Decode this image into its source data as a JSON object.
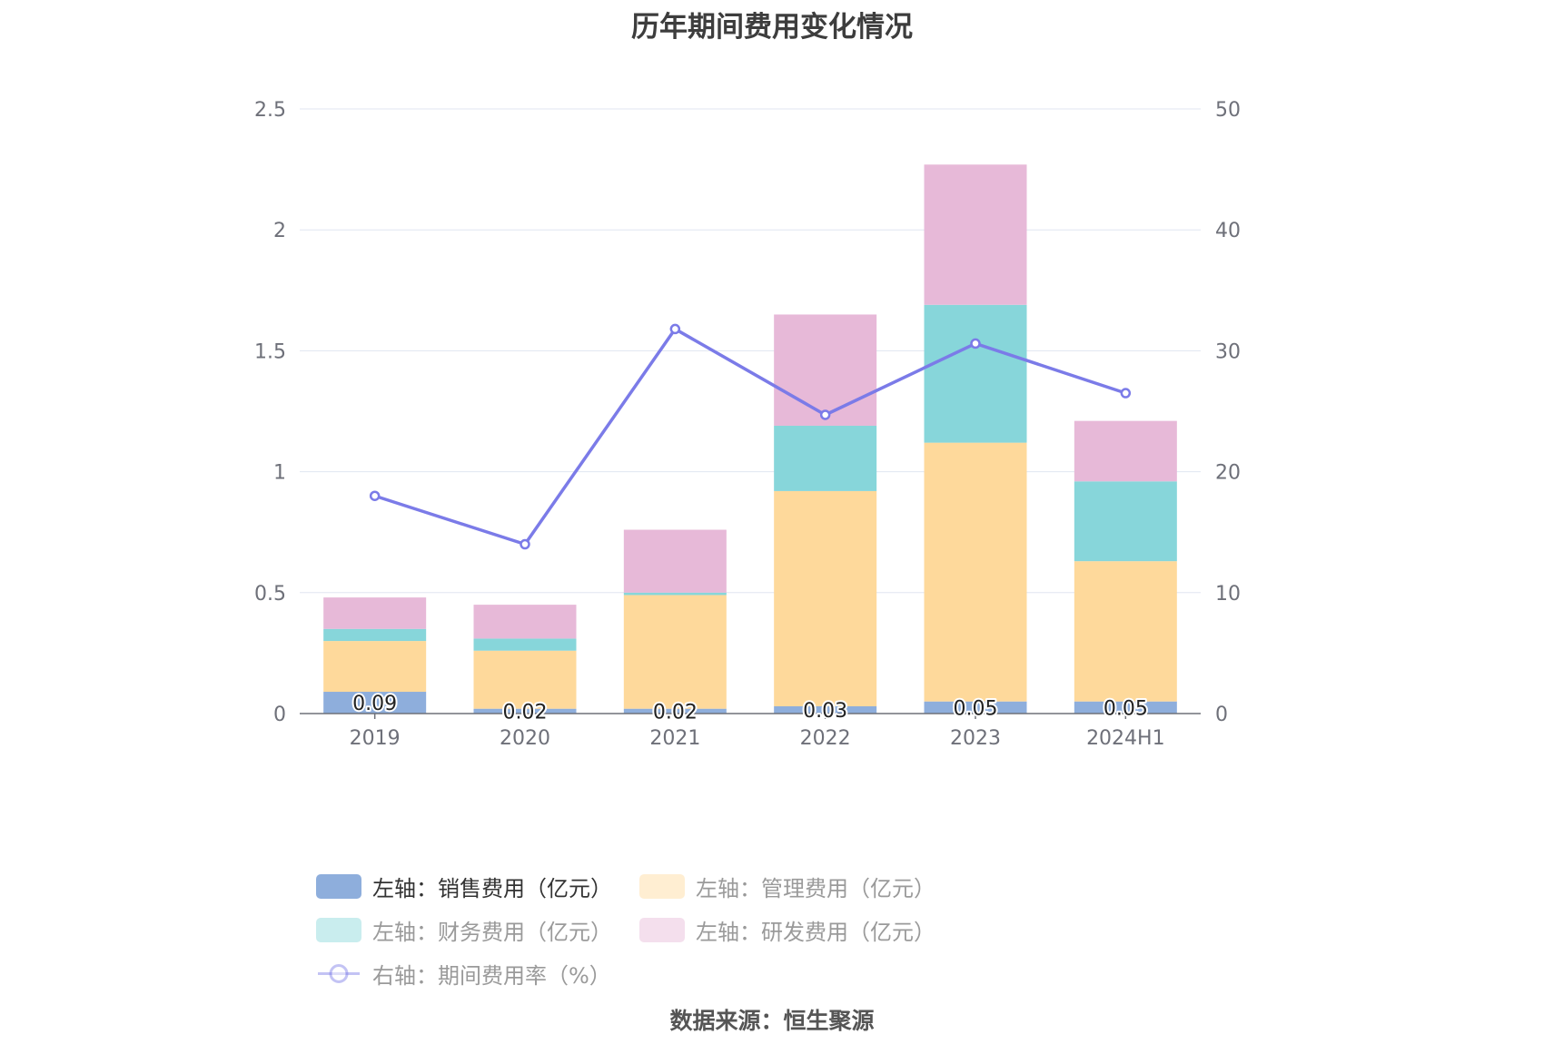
{
  "chart_data": {
    "type": "bar",
    "title": "历年期间费用变化情况",
    "source": "数据来源：恒生聚源",
    "categories": [
      "2019",
      "2020",
      "2021",
      "2022",
      "2023",
      "2024H1"
    ],
    "y_left": {
      "min": 0,
      "max": 2.5,
      "ticks": [
        "0",
        "0.5",
        "1",
        "1.5",
        "2",
        "2.5"
      ]
    },
    "y_right": {
      "min": 0,
      "max": 50,
      "ticks": [
        "0",
        "10",
        "20",
        "30",
        "40",
        "50"
      ]
    },
    "grid": true,
    "legend_position": "bottom",
    "series": [
      {
        "name": "左轴：销售费用（亿元）",
        "type": "bar",
        "axis": "left",
        "color": "#8eaedc",
        "values": [
          0.09,
          0.02,
          0.02,
          0.03,
          0.05,
          0.05
        ],
        "labels": [
          "0.09",
          "0.02",
          "0.02",
          "0.03",
          "0.05",
          "0.05"
        ],
        "legend_dim": false
      },
      {
        "name": "左轴：管理费用（亿元）",
        "type": "bar",
        "axis": "left",
        "color": "#fed99b",
        "values": [
          0.21,
          0.24,
          0.47,
          0.89,
          1.07,
          0.58
        ],
        "legend_dim": true
      },
      {
        "name": "左轴：财务费用（亿元）",
        "type": "bar",
        "axis": "left",
        "color": "#87d6da",
        "values": [
          0.05,
          0.05,
          0.01,
          0.27,
          0.57,
          0.33
        ],
        "legend_dim": true
      },
      {
        "name": "左轴：研发费用（亿元）",
        "type": "bar",
        "axis": "left",
        "color": "#e7b9d8",
        "values": [
          0.13,
          0.14,
          0.26,
          0.46,
          0.58,
          0.25
        ],
        "legend_dim": true
      },
      {
        "name": "右轴：期间费用率（%）",
        "type": "line",
        "axis": "right",
        "color": "#7b7be8",
        "values": [
          18.0,
          14.0,
          31.8,
          24.7,
          30.6,
          26.5
        ],
        "legend_dim": true
      }
    ]
  }
}
